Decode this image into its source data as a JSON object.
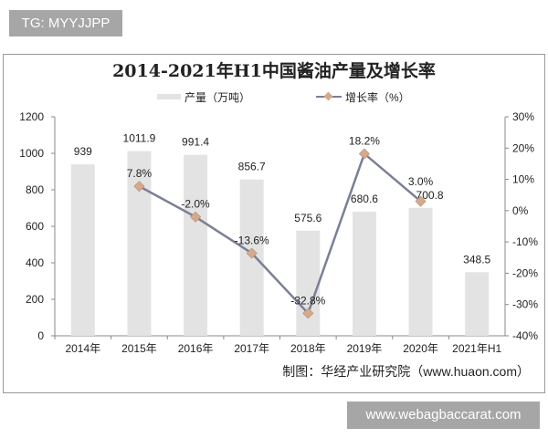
{
  "watermarks": {
    "top_left": "TG: MYYJJPP",
    "bottom_right": "www.webagbaccarat.com"
  },
  "chart_data": {
    "type": "bar+line",
    "title": "2014-2021年H1中国酱油产量及增长率",
    "source": "制图：华经产业研究院（www.huaon.com）",
    "legend_placement": "top",
    "categories": [
      "2014年",
      "2015年",
      "2016年",
      "2017年",
      "2018年",
      "2019年",
      "2020年",
      "2021年H1"
    ],
    "series": [
      {
        "name": "产量（万吨）",
        "type": "bar",
        "axis": "left",
        "color": "#e3e3e3",
        "values": [
          939,
          1011.9,
          991.4,
          856.7,
          575.6,
          680.6,
          700.8,
          348.5
        ],
        "labels": [
          "939",
          "1011.9",
          "991.4",
          "856.7",
          "575.6",
          "680.6",
          "700.8",
          "348.5"
        ]
      },
      {
        "name": "增长率（%）",
        "type": "line",
        "axis": "right",
        "color": "#7a7f96",
        "marker_color": "#d4a98c",
        "values": [
          null,
          7.8,
          -2.0,
          -13.6,
          -32.8,
          18.2,
          3.0,
          null
        ],
        "labels": [
          "",
          "7.8%",
          "-2.0%",
          "-13.6%",
          "-32.8%",
          "18.2%",
          "3.0%",
          ""
        ]
      }
    ],
    "y_left": {
      "range": [
        0,
        1200
      ],
      "ticks": [
        "0",
        "200",
        "400",
        "600",
        "800",
        "1000",
        "1200"
      ]
    },
    "y_right": {
      "range": [
        -40,
        30
      ],
      "ticks": [
        "-40%",
        "-30%",
        "-20%",
        "-10%",
        "0%",
        "10%",
        "20%",
        "30%"
      ]
    },
    "grid": false
  }
}
